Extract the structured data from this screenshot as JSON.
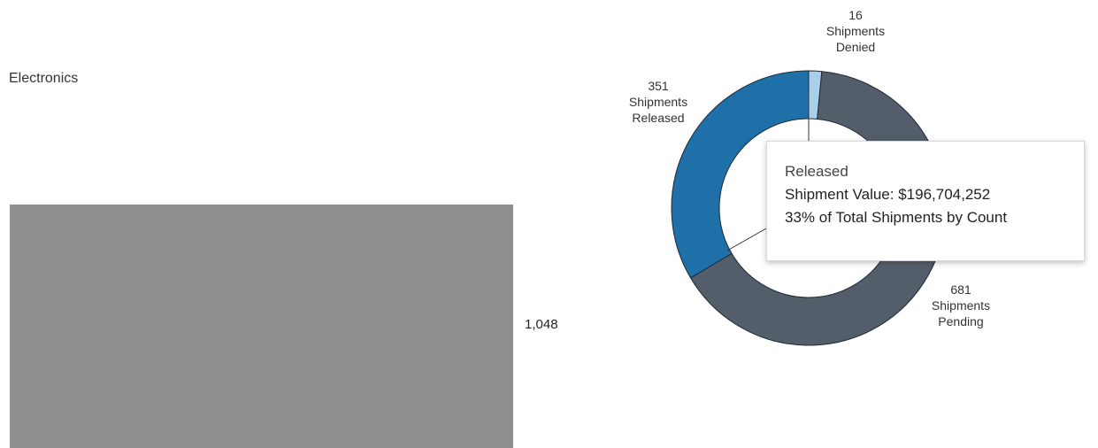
{
  "bar_panel": {
    "category": "Electronics",
    "value_label": "1,048"
  },
  "chart_data": [
    {
      "type": "bar",
      "orientation": "horizontal",
      "categories": [
        "Electronics"
      ],
      "values": [
        1048
      ],
      "color": "#8f8f8f"
    },
    {
      "type": "pie",
      "variant": "donut",
      "slices": [
        {
          "name": "Shipments Released",
          "value": 351,
          "color": "#1f6fa8"
        },
        {
          "name": "Shipments Denied",
          "value": 16,
          "color": "#a9cfea"
        },
        {
          "name": "Shipments Pending",
          "value": 681,
          "color": "#545e6b"
        }
      ],
      "labels": {
        "released": {
          "count": "351",
          "line1": "Shipments",
          "line2": "Released"
        },
        "denied": {
          "count": "16",
          "line1": "Shipments",
          "line2": "Denied"
        },
        "pending": {
          "count": "681",
          "line1": "Shipments",
          "line2": "Pending"
        }
      }
    }
  ],
  "tooltip": {
    "title": "Released",
    "value_line": "Shipment Value: $196,704,252",
    "percent_line": "33% of Total Shipments by Count"
  }
}
